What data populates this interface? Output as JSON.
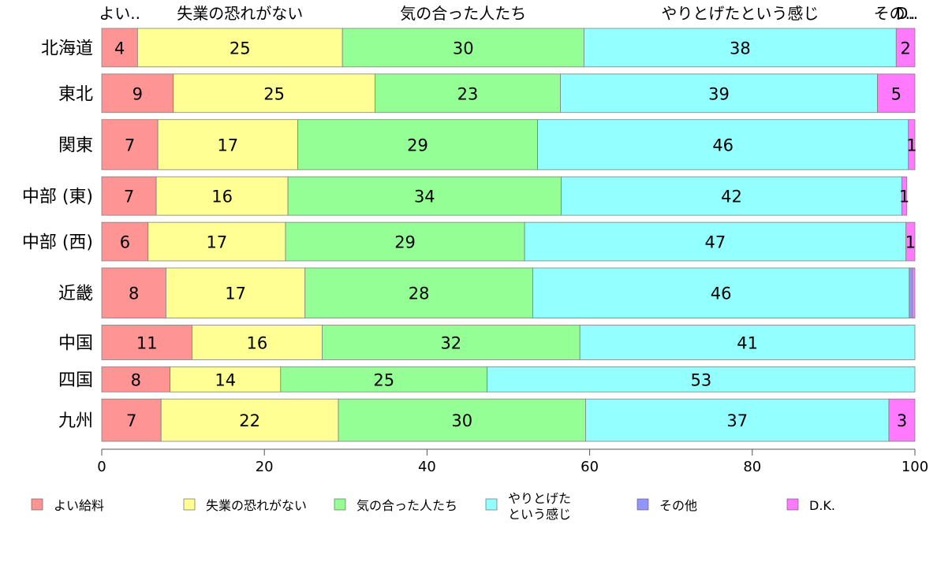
{
  "chart_data": {
    "type": "bar",
    "orientation": "horizontal",
    "stacked": true,
    "categories": [
      "北海道",
      "東北",
      "関東",
      "中部 (東)",
      "中部 (西)",
      "近畿",
      "中国",
      "四国",
      "九州"
    ],
    "top_labels": [
      "よい..",
      "失業の恐れがない",
      "気の合った人たち",
      "やりとげたという感じ",
      "その..",
      "D.."
    ],
    "series": [
      {
        "name": "よい給料",
        "color": "#ff9494",
        "values": [
          4.4,
          8.8,
          6.9,
          6.7,
          5.7,
          7.9,
          11.1,
          8.4,
          7.3
        ]
      },
      {
        "name": "失業の恐れがない",
        "color": "#ffff94",
        "values": [
          25.2,
          24.8,
          17.2,
          16.2,
          16.9,
          17.1,
          16.0,
          13.6,
          21.8
        ]
      },
      {
        "name": "気の合った人たち",
        "color": "#94ff94",
        "values": [
          29.7,
          22.8,
          29.5,
          33.6,
          29.4,
          28.0,
          31.7,
          25.4,
          30.4
        ]
      },
      {
        "name": "やりとげたという感じ",
        "color": "#94ffff",
        "values": [
          38.4,
          39.0,
          45.6,
          41.9,
          46.9,
          46.3,
          41.2,
          52.6,
          37.3
        ]
      },
      {
        "name": "その他",
        "color": "#9494ff",
        "values": [
          0.0,
          0.0,
          0.0,
          0.0,
          0.0,
          0.4,
          0.0,
          0.0,
          0.0
        ]
      },
      {
        "name": "D.K.",
        "color": "#ff7aff",
        "values": [
          2.3,
          4.6,
          0.8,
          0.6,
          1.1,
          0.3,
          0.0,
          0.0,
          3.2
        ]
      }
    ],
    "data_labels": [
      [
        "4",
        "25",
        "30",
        "38",
        "",
        "2"
      ],
      [
        "9",
        "25",
        "23",
        "39",
        "",
        "5"
      ],
      [
        "7",
        "17",
        "29",
        "46",
        "",
        "1"
      ],
      [
        "7",
        "16",
        "34",
        "42",
        "",
        "1"
      ],
      [
        "6",
        "17",
        "29",
        "47",
        "",
        "1"
      ],
      [
        "8",
        "17",
        "28",
        "46",
        "",
        ""
      ],
      [
        "11",
        "16",
        "32",
        "41",
        "",
        ""
      ],
      [
        "8",
        "14",
        "25",
        "53",
        "",
        ""
      ],
      [
        "7",
        "22",
        "30",
        "37",
        "",
        "3"
      ]
    ],
    "row_weights": [
      1,
      1,
      1.3,
      1,
      1,
      1.3,
      0.9,
      0.65,
      1.1
    ],
    "xlim": [
      0,
      100
    ],
    "xticks": [
      0,
      20,
      40,
      60,
      80,
      100
    ],
    "legend": {
      "placement": "bottom",
      "items": [
        {
          "label": "よい給料",
          "color": "#ff9494"
        },
        {
          "label": "失業の恐れがない",
          "color": "#ffff94"
        },
        {
          "label": "気の合った人たち",
          "color": "#94ff94"
        },
        {
          "label": "やりとげた\nという感じ",
          "color": "#94ffff"
        },
        {
          "label": "その他",
          "color": "#9494ff"
        },
        {
          "label": "D.K.",
          "color": "#ff7aff"
        }
      ]
    }
  }
}
